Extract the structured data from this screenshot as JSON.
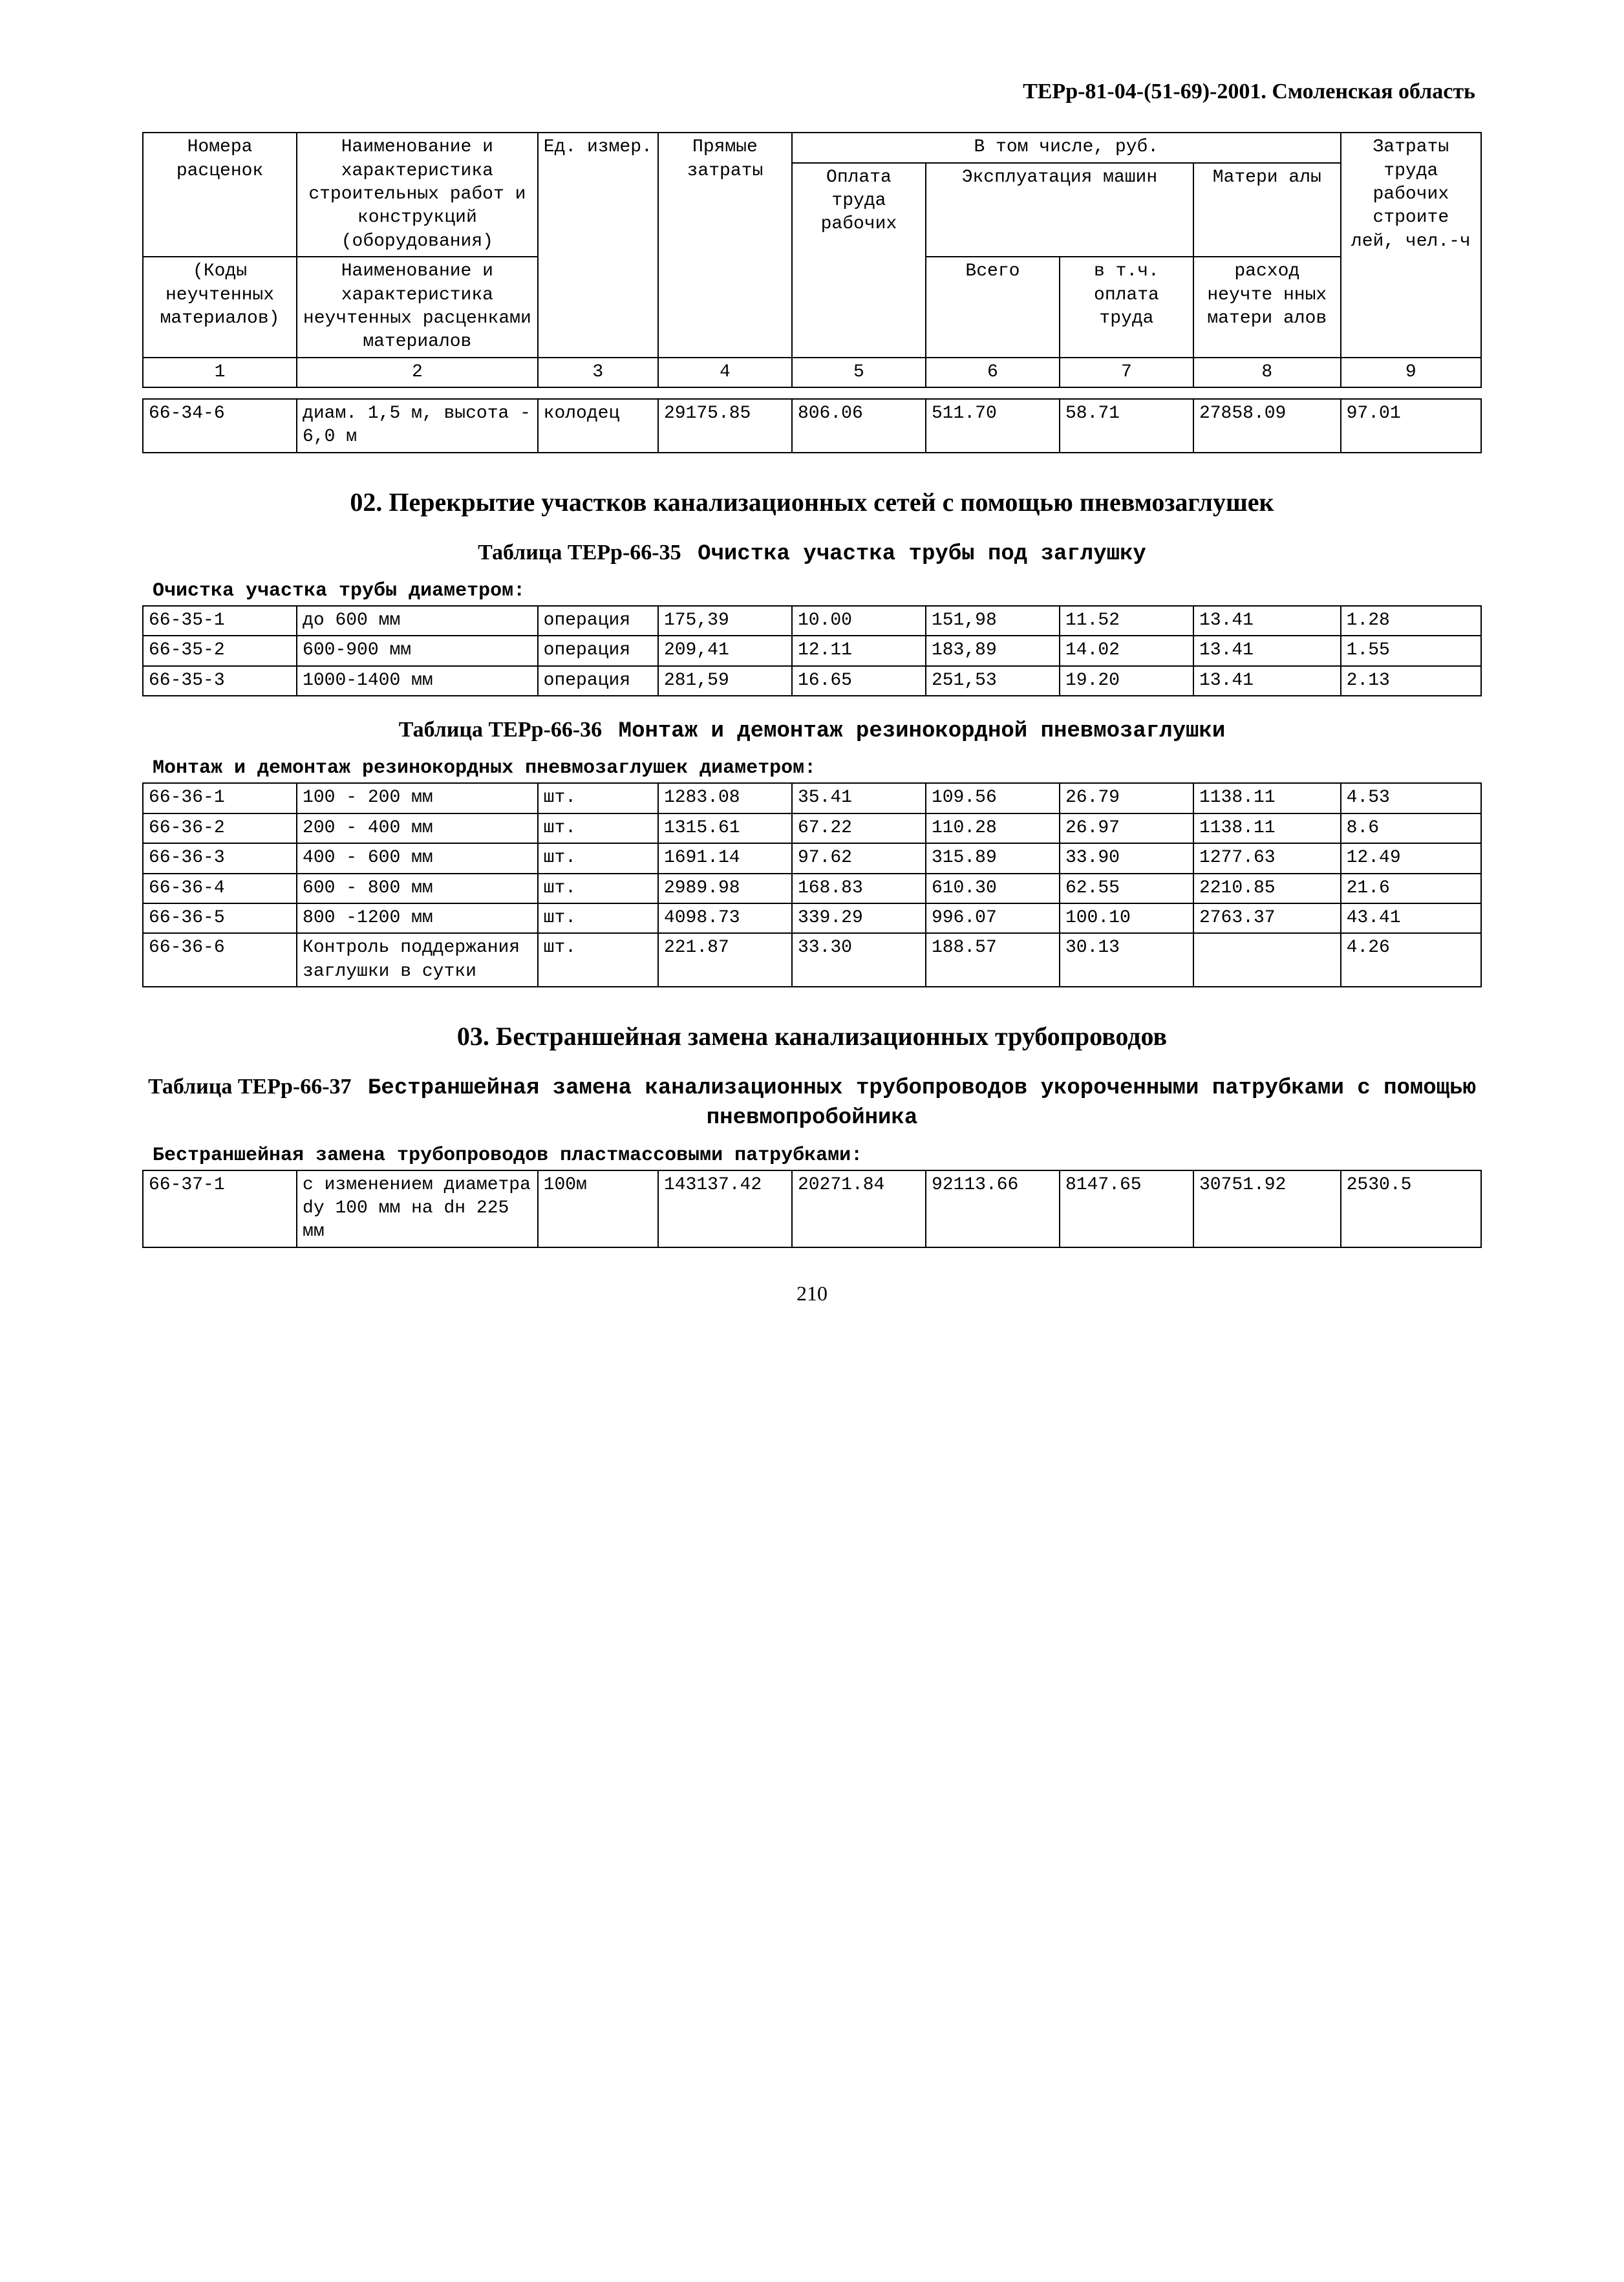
{
  "header": "ТЕРр-81-04-(51-69)-2001. Смоленская область",
  "cols": {
    "w": [
      190,
      270,
      140,
      160,
      150,
      150,
      150,
      160,
      150
    ],
    "c1_r1": "Номера расценок",
    "c2_r1": "Наименование и характеристика строительных работ и конструкций (оборудования)",
    "c3_r1": "Ед. измер.",
    "c4_r1": "Прямые затраты",
    "c5_r1_merge": "В том числе, руб.",
    "c9_r1": "Затраты труда рабочих строите лей, чел.-ч",
    "c5_r2": "Оплата труда рабочих",
    "c6_r2_merge": "Эксплуатация машин",
    "c8_r2": "Матери алы",
    "c1_r3": "(Коды неучтенных материалов)",
    "c2_r3": "Наименование и характеристика неучтенных расценками материалов",
    "c6_r3": "Всего",
    "c7_r3": "в т.ч. оплата труда",
    "c8_r3": "расход неучте нных матери алов",
    "n1": "1",
    "n2": "2",
    "n3": "3",
    "n4": "4",
    "n5": "5",
    "n6": "6",
    "n7": "7",
    "n8": "8",
    "n9": "9"
  },
  "row1": {
    "c1": "66-34-6",
    "c2": "диам. 1,5 м, высота - 6,0 м",
    "c3": "колодец",
    "c4": "29175.85",
    "c5": "806.06",
    "c6": "511.70",
    "c7": "58.71",
    "c8": "27858.09",
    "c9": "97.01"
  },
  "sec02": "02. Перекрытие участков канализационных сетей с помощью пневмозаглушек",
  "t35": {
    "title_a": "Таблица ТЕРр-66-35",
    "title_b": "Очистка участка трубы под заглушку",
    "sub": "Очистка участка трубы диаметром:",
    "rows": [
      {
        "c1": "66-35-1",
        "c2": "до 600 мм",
        "c3": "операция",
        "c4": "175,39",
        "c5": "10.00",
        "c6": "151,98",
        "c7": "11.52",
        "c8": "13.41",
        "c9": "1.28"
      },
      {
        "c1": "66-35-2",
        "c2": "600-900 мм",
        "c3": "операция",
        "c4": "209,41",
        "c5": "12.11",
        "c6": "183,89",
        "c7": "14.02",
        "c8": "13.41",
        "c9": "1.55"
      },
      {
        "c1": "66-35-3",
        "c2": "1000-1400 мм",
        "c3": "операция",
        "c4": "281,59",
        "c5": "16.65",
        "c6": "251,53",
        "c7": "19.20",
        "c8": "13.41",
        "c9": "2.13"
      }
    ]
  },
  "t36": {
    "title_a": "Таблица ТЕРр-66-36",
    "title_b": "Монтаж и демонтаж резинокордной пневмозаглушки",
    "sub": "Монтаж и демонтаж резинокордных пневмозаглушек диаметром:",
    "rows": [
      {
        "c1": "66-36-1",
        "c2": "100 - 200 мм",
        "c3": "шт.",
        "c4": "1283.08",
        "c5": "35.41",
        "c6": "109.56",
        "c7": "26.79",
        "c8": "1138.11",
        "c9": "4.53"
      },
      {
        "c1": "66-36-2",
        "c2": "200 - 400 мм",
        "c3": "шт.",
        "c4": "1315.61",
        "c5": "67.22",
        "c6": "110.28",
        "c7": "26.97",
        "c8": "1138.11",
        "c9": "8.6"
      },
      {
        "c1": "66-36-3",
        "c2": "400 - 600 мм",
        "c3": "шт.",
        "c4": "1691.14",
        "c5": "97.62",
        "c6": "315.89",
        "c7": "33.90",
        "c8": "1277.63",
        "c9": "12.49"
      },
      {
        "c1": "66-36-4",
        "c2": "600 - 800 мм",
        "c3": "шт.",
        "c4": "2989.98",
        "c5": "168.83",
        "c6": "610.30",
        "c7": "62.55",
        "c8": "2210.85",
        "c9": "21.6"
      },
      {
        "c1": "66-36-5",
        "c2": "800 -1200 мм",
        "c3": "шт.",
        "c4": "4098.73",
        "c5": "339.29",
        "c6": "996.07",
        "c7": "100.10",
        "c8": "2763.37",
        "c9": "43.41"
      },
      {
        "c1": "66-36-6",
        "c2": "Контроль поддержания заглушки в сутки",
        "c3": "шт.",
        "c4": "221.87",
        "c5": "33.30",
        "c6": "188.57",
        "c7": "30.13",
        "c8": "",
        "c9": "4.26"
      }
    ]
  },
  "sec03": "03. Бестраншейная замена канализационных трубопроводов",
  "t37": {
    "title_a": "Таблица ТЕРр-66-37",
    "title_b": "Бестраншейная замена канализационных трубопроводов укороченными патрубками с помощью пневмопробойника",
    "sub": "Бестраншейная замена трубопроводов пластмассовыми патрубками:",
    "rows": [
      {
        "c1": "66-37-1",
        "c2": "с изменением диаметра dу 100 мм на dн 225 мм",
        "c3": "100м",
        "c4": "143137.42",
        "c5": "20271.84",
        "c6": "92113.66",
        "c7": "8147.65",
        "c8": "30751.92",
        "c9": "2530.5"
      }
    ]
  },
  "page_number": "210"
}
